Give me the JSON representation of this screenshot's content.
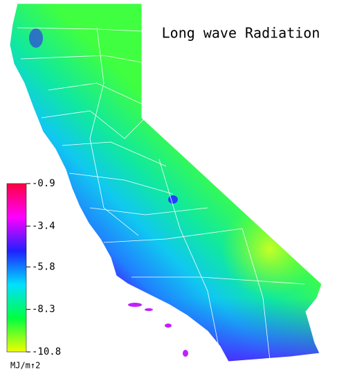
{
  "title": "Long wave Radiation",
  "legend": {
    "ticks": [
      -0.9,
      -3.4,
      -5.8,
      -8.3,
      -10.8
    ],
    "unit": "MJ/m↑2",
    "colors": [
      "#ff0040",
      "#ff00ff",
      "#2020ff",
      "#00e0ff",
      "#00ff40",
      "#f0ff00"
    ]
  }
}
